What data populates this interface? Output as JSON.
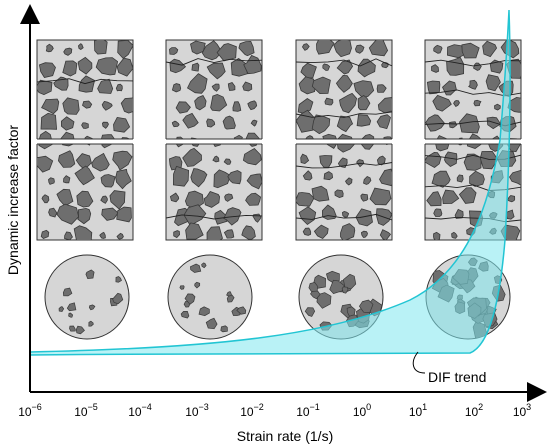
{
  "figure": {
    "ylabel": "Dynamic increase factor",
    "xlabel": "Strain rate (1/s)",
    "ticks": [
      {
        "base": "10",
        "exp": "−6"
      },
      {
        "base": "10",
        "exp": "−5"
      },
      {
        "base": "10",
        "exp": "−4"
      },
      {
        "base": "10",
        "exp": "−3"
      },
      {
        "base": "10",
        "exp": "−2"
      },
      {
        "base": "10",
        "exp": "−1"
      },
      {
        "base": "10",
        "exp": "0"
      },
      {
        "base": "10",
        "exp": "1"
      },
      {
        "base": "10",
        "exp": "2"
      },
      {
        "base": "10",
        "exp": "3"
      }
    ],
    "annotation": "DIF trend",
    "colors": {
      "trend_fill": "#7fe8ee",
      "trend_stroke": "#22c5d3",
      "aggregate": "#6e6e6e",
      "matrix": "#d6d6d6",
      "outline": "#333333"
    }
  }
}
